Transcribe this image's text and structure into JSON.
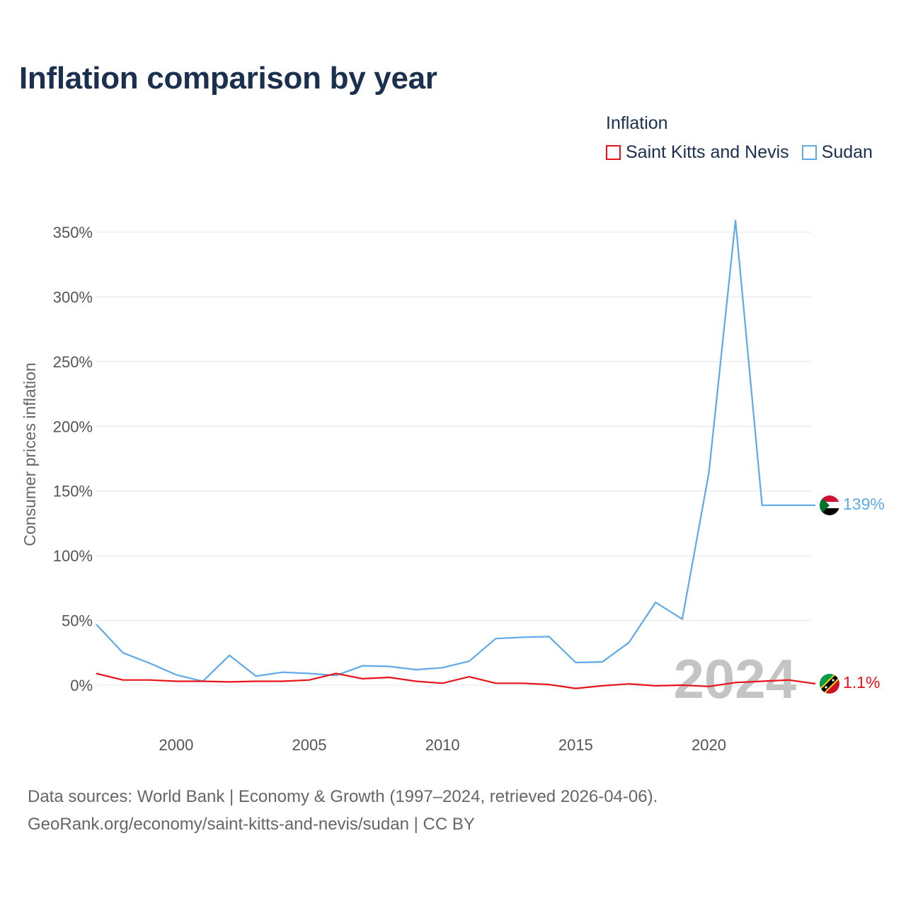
{
  "title": "Inflation comparison by year",
  "legend": {
    "title": "Inflation",
    "items": [
      {
        "label": "Saint Kitts and Nevis",
        "color": "#e8141c"
      },
      {
        "label": "Sudan",
        "color": "#5ea9e8"
      }
    ]
  },
  "chart_data": {
    "type": "line",
    "title": "Inflation comparison by year",
    "xlabel": "",
    "ylabel": "Consumer prices inflation",
    "xlim": [
      1997,
      2024
    ],
    "ylim": [
      -20,
      370
    ],
    "x_ticks": [
      2000,
      2005,
      2010,
      2015,
      2020
    ],
    "y_ticks": [
      0,
      50,
      100,
      150,
      200,
      250,
      300,
      350
    ],
    "y_tick_labels": [
      "0%",
      "50%",
      "100%",
      "150%",
      "200%",
      "250%",
      "300%",
      "350%"
    ],
    "x": [
      1997,
      1998,
      1999,
      2000,
      2001,
      2002,
      2003,
      2004,
      2005,
      2006,
      2007,
      2008,
      2009,
      2010,
      2011,
      2012,
      2013,
      2014,
      2015,
      2016,
      2017,
      2018,
      2019,
      2020,
      2021,
      2022,
      2023,
      2024
    ],
    "series": [
      {
        "name": "Sudan",
        "color": "#5ea9e8",
        "values": [
          47,
          25,
          17,
          8,
          3,
          23,
          7,
          10,
          9,
          7.5,
          15,
          14.5,
          12,
          13.5,
          18.5,
          36,
          37,
          37.5,
          17.5,
          18,
          33,
          64,
          51,
          164,
          359,
          139,
          139,
          139
        ],
        "end_label": "139%"
      },
      {
        "name": "Saint Kitts and Nevis",
        "color": "#e8141c",
        "values": [
          9,
          4,
          4,
          3,
          3,
          2.5,
          3,
          3,
          4,
          9,
          5,
          6,
          3,
          1.5,
          6.5,
          1.5,
          1.5,
          0.5,
          -2.5,
          -0.5,
          1,
          -0.5,
          0,
          -1,
          2,
          3,
          4,
          1.1
        ],
        "end_label": "1.1%"
      }
    ],
    "year_watermark": "2024",
    "grid": true
  },
  "footer": {
    "line1": "Data sources: World Bank | Economy & Growth (1997–2024, retrieved 2026-04-06).",
    "line2": "GeoRank.org/economy/saint-kitts-and-nevis/sudan | CC BY"
  }
}
